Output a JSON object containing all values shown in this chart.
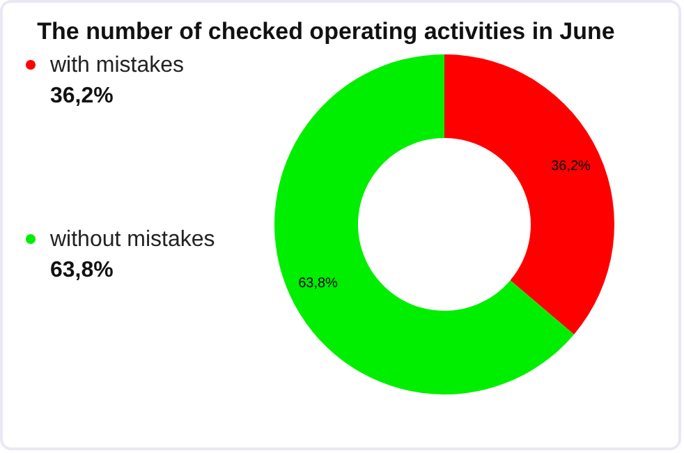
{
  "chart_data": {
    "type": "donut",
    "title": "The number of checked operating activities in June",
    "categories": [
      "with mistakes",
      "without mistakes"
    ],
    "values": [
      36.2,
      63.8
    ],
    "colors": [
      "#ff0000",
      "#00ee00"
    ],
    "value_labels": [
      "36,2%",
      "63,8%"
    ],
    "legend": "left"
  }
}
